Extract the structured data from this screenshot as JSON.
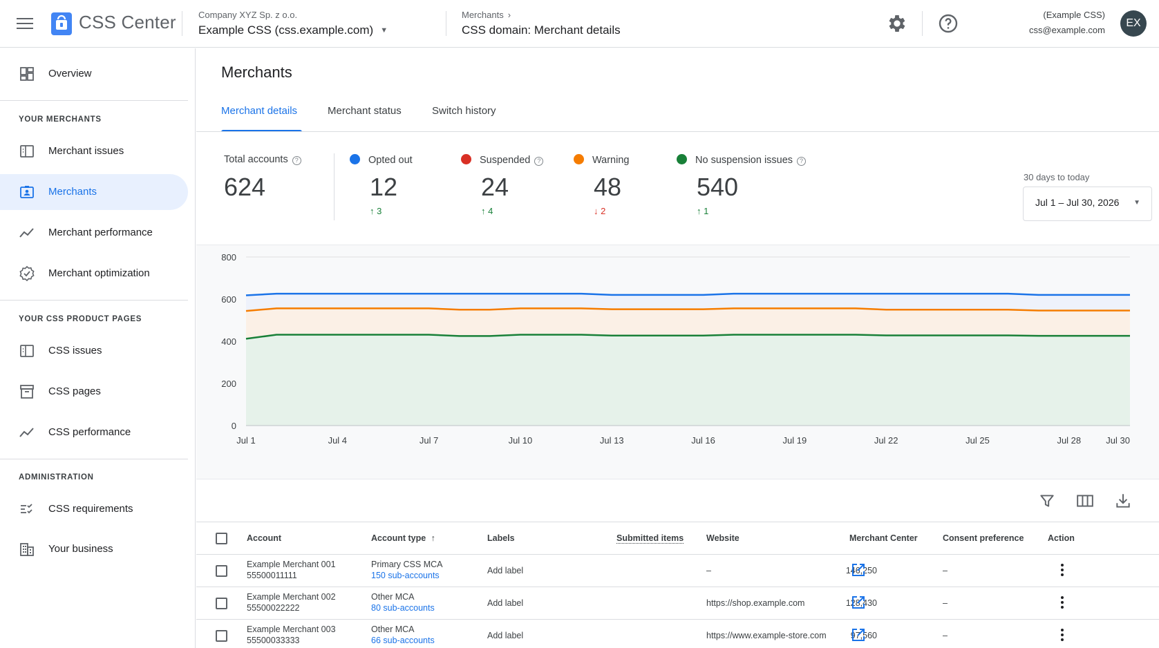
{
  "header": {
    "app_title": "CSS Center",
    "company": "Company XYZ Sp. z o.o.",
    "domain_selector": "Example CSS (css.example.com)",
    "breadcrumb_parent": "Merchants",
    "breadcrumb_current": "CSS domain: Merchant details",
    "account_name": "(Example CSS)",
    "account_email": "css@example.com",
    "avatar_initials": "EX"
  },
  "sidebar": {
    "overview": "Overview",
    "section_merchants": "YOUR MERCHANTS",
    "merchant_issues": "Merchant issues",
    "merchants": "Merchants",
    "merchant_performance": "Merchant performance",
    "merchant_optimization": "Merchant optimization",
    "section_pages": "YOUR CSS PRODUCT PAGES",
    "css_issues": "CSS issues",
    "css_pages": "CSS pages",
    "css_performance": "CSS performance",
    "section_admin": "ADMINISTRATION",
    "css_requirements": "CSS requirements",
    "your_business": "Your business",
    "active_item": "Merchants"
  },
  "main": {
    "title": "Merchants",
    "tabs": [
      "Merchant details",
      "Merchant status",
      "Switch history"
    ],
    "active_tab": "Merchant details"
  },
  "stats": {
    "total": {
      "label": "Total accounts",
      "value": "624"
    },
    "opted_out": {
      "label": "Opted out",
      "value": "12",
      "delta": "3",
      "direction": "up",
      "color": "#1a73e8"
    },
    "suspended": {
      "label": "Suspended",
      "value": "24",
      "delta": "4",
      "direction": "up",
      "color": "#d93025"
    },
    "warning": {
      "label": "Warning",
      "value": "48",
      "delta": "2",
      "direction": "down",
      "color": "#f57c00"
    },
    "no_issues": {
      "label": "No suspension issues",
      "value": "540",
      "delta": "1",
      "direction": "up",
      "color": "#188038"
    }
  },
  "date_range": {
    "label": "30 days to today",
    "value": "Jul 1 – Jul 30, 2026"
  },
  "chart_data": {
    "type": "line",
    "x": [
      "Jul 1",
      "Jul 2",
      "Jul 3",
      "Jul 4",
      "Jul 5",
      "Jul 6",
      "Jul 7",
      "Jul 8",
      "Jul 9",
      "Jul 10",
      "Jul 11",
      "Jul 12",
      "Jul 13",
      "Jul 14",
      "Jul 15",
      "Jul 16",
      "Jul 17",
      "Jul 18",
      "Jul 19",
      "Jul 20",
      "Jul 21",
      "Jul 22",
      "Jul 23",
      "Jul 24",
      "Jul 25",
      "Jul 26",
      "Jul 27",
      "Jul 28",
      "Jul 29",
      "Jul 30"
    ],
    "x_ticks": [
      "Jul 1",
      "Jul 4",
      "Jul 7",
      "Jul 10",
      "Jul 13",
      "Jul 16",
      "Jul 19",
      "Jul 22",
      "Jul 25",
      "Jul 28",
      "Jul 30"
    ],
    "y_ticks": [
      0,
      200,
      400,
      600,
      800
    ],
    "ylim": [
      0,
      800
    ],
    "series": [
      {
        "color": "#1a73e8",
        "values": [
          618,
          626,
          626,
          626,
          626,
          626,
          626,
          626,
          626,
          626,
          626,
          626,
          620,
          620,
          620,
          620,
          626,
          626,
          626,
          626,
          626,
          626,
          626,
          626,
          626,
          626,
          620,
          620,
          620,
          620
        ]
      },
      {
        "color": "#f57c00",
        "values": [
          544,
          556,
          556,
          556,
          556,
          556,
          556,
          550,
          550,
          556,
          556,
          556,
          552,
          552,
          552,
          552,
          556,
          556,
          556,
          556,
          556,
          550,
          550,
          550,
          550,
          550,
          546,
          546,
          546,
          546
        ]
      },
      {
        "color": "#188038",
        "values": [
          412,
          431,
          431,
          431,
          431,
          431,
          431,
          425,
          425,
          431,
          431,
          431,
          427,
          427,
          427,
          427,
          431,
          431,
          431,
          431,
          431,
          428,
          428,
          428,
          428,
          428,
          426,
          426,
          426,
          426
        ]
      }
    ]
  },
  "table": {
    "columns": {
      "account": "Account",
      "account_type": "Account type",
      "labels": "Labels",
      "submitted": "Submitted items",
      "website": "Website",
      "merchant_center": "Merchant Center",
      "consent": "Consent preference",
      "action": "Action"
    },
    "rows": [
      {
        "name": "Example Merchant 001",
        "id": "55500011111",
        "type": "Primary CSS MCA",
        "sub": "150 sub-accounts",
        "label": "Add label",
        "submitted": "146,250",
        "website": "–",
        "consent": "–"
      },
      {
        "name": "Example Merchant 002",
        "id": "55500022222",
        "type": "Other MCA",
        "sub": "80 sub-accounts",
        "label": "Add label",
        "submitted": "128,430",
        "website": "https://shop.example.com",
        "consent": "–"
      },
      {
        "name": "Example Merchant 003",
        "id": "55500033333",
        "type": "Other MCA",
        "sub": "66 sub-accounts",
        "label": "Add label",
        "submitted": "97,560",
        "website": "https://www.example-store.com",
        "consent": "–"
      }
    ]
  },
  "colors": {
    "accent": "#1a73e8",
    "active_nav_bg": "#e8f0fe"
  }
}
